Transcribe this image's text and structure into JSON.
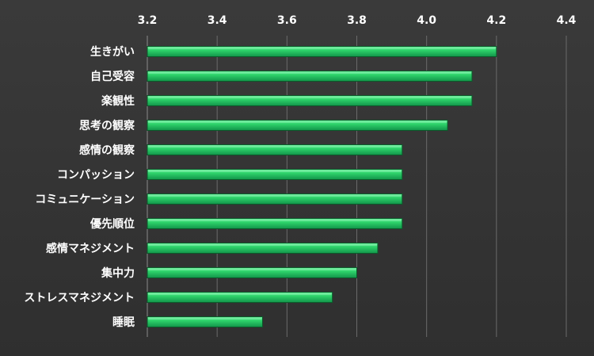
{
  "chart_data": {
    "type": "bar",
    "orientation": "horizontal",
    "title": "",
    "xlabel": "",
    "ylabel": "",
    "xlim": [
      3.2,
      4.4
    ],
    "x_ticks": [
      3.2,
      3.4,
      3.6,
      3.8,
      4.0,
      4.2,
      4.4
    ],
    "x_tick_labels": [
      "3.2",
      "3.4",
      "3.6",
      "3.8",
      "4.0",
      "4.2",
      "4.4"
    ],
    "x_tick_position": "top",
    "grid": "vertical",
    "legend": "none",
    "categories": [
      "生きがい",
      "自己受容",
      "楽観性",
      "思考の観察",
      "感情の観察",
      "コンパッション",
      "コミュニケーション",
      "優先順位",
      "感情マネジメント",
      "集中力",
      "ストレスマネジメント",
      "睡眠"
    ],
    "values": [
      4.2,
      4.13,
      4.13,
      4.06,
      3.93,
      3.93,
      3.93,
      3.93,
      3.86,
      3.8,
      3.73,
      3.53
    ]
  },
  "colors": {
    "background": "#333333",
    "bar_fill": "#22c35e",
    "bar_highlight": "#7ef0a8",
    "bar_edge": "#0b5a2a",
    "text": "#ffffff",
    "grid": "#6a6a6a"
  }
}
